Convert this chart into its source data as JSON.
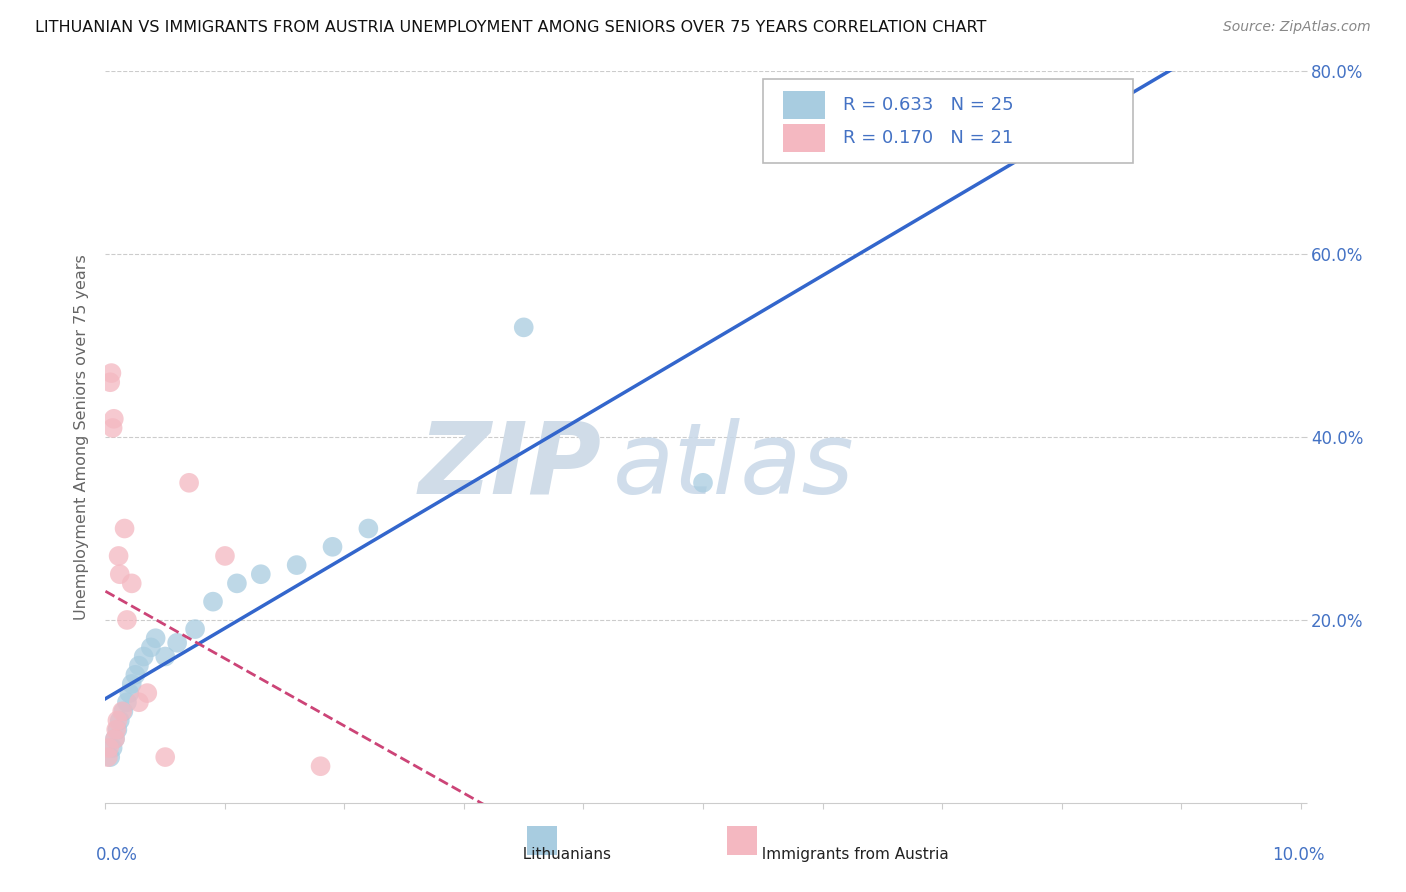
{
  "title": "LITHUANIAN VS IMMIGRANTS FROM AUSTRIA UNEMPLOYMENT AMONG SENIORS OVER 75 YEARS CORRELATION CHART",
  "source": "Source: ZipAtlas.com",
  "ylabel": "Unemployment Among Seniors over 75 years",
  "xlim": [
    0.0,
    10.0
  ],
  "ylim": [
    0.0,
    80.0
  ],
  "ytick_positions": [
    0,
    20,
    40,
    60,
    80
  ],
  "ytick_labels": [
    "",
    "20.0%",
    "40.0%",
    "60.0%",
    "80.0%"
  ],
  "lit_color": "#a8cce0",
  "lit_line_color": "#3366cc",
  "aut_color": "#f4b8c1",
  "aut_line_color": "#cc4477",
  "lit_R": 0.633,
  "lit_N": 25,
  "aut_R": 0.17,
  "aut_N": 21,
  "lit_x": [
    0.04,
    0.06,
    0.08,
    0.1,
    0.12,
    0.15,
    0.18,
    0.2,
    0.22,
    0.25,
    0.28,
    0.32,
    0.38,
    0.42,
    0.5,
    0.6,
    0.75,
    0.9,
    1.1,
    1.3,
    1.6,
    1.9,
    2.2,
    3.5,
    5.0
  ],
  "lit_y": [
    5.0,
    6.0,
    7.0,
    8.0,
    9.0,
    10.0,
    11.0,
    12.0,
    13.0,
    14.0,
    15.0,
    16.0,
    17.0,
    18.0,
    16.0,
    17.5,
    19.0,
    22.0,
    24.0,
    25.0,
    26.0,
    28.0,
    30.0,
    52.0,
    35.0
  ],
  "aut_x": [
    0.02,
    0.03,
    0.04,
    0.05,
    0.06,
    0.07,
    0.08,
    0.09,
    0.1,
    0.11,
    0.12,
    0.14,
    0.16,
    0.18,
    0.22,
    0.28,
    0.35,
    0.5,
    0.7,
    1.0,
    1.8
  ],
  "aut_y": [
    5.0,
    6.0,
    46.0,
    47.0,
    41.0,
    42.0,
    7.0,
    8.0,
    9.0,
    27.0,
    25.0,
    10.0,
    30.0,
    20.0,
    24.0,
    11.0,
    12.0,
    5.0,
    35.0,
    27.0,
    4.0
  ],
  "background_color": "#ffffff",
  "grid_color": "#cccccc"
}
